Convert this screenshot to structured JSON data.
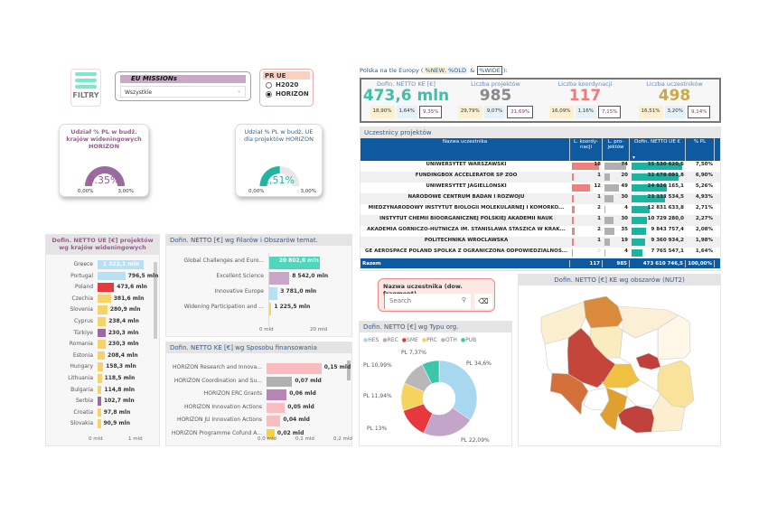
{
  "filters": {
    "filtry_label": "FILTRY",
    "missions_title": "EU MISSIONs",
    "missions_value": "Wszystkie",
    "prue_title": "PR UE",
    "prue_options": [
      {
        "label": "H2020",
        "selected": false
      },
      {
        "label": "HORIZON",
        "selected": true
      }
    ]
  },
  "gauges": [
    {
      "title": "Udział % PL w budż. krajów wideningowych HORIZON",
      "value": "9.35%",
      "value_num": 9.35,
      "min": "0,00%",
      "max": "3,00%",
      "max_num": 3,
      "color": "#9b6a9e",
      "text_color": "#9b5a92"
    },
    {
      "title": "Udział % PL w budż. UE dla projektów HORIZON",
      "value": "1,51%",
      "value_num": 1.51,
      "min": "0,00%",
      "max": "3,00%",
      "max_num": 3,
      "color": "#1fb5a0",
      "text_color": "#2a6a9a"
    }
  ],
  "kpi": {
    "title_pre": "Polska na tle Europy (",
    "tag_new": "%NEW,",
    "tag_old": "%OLD",
    "amp": "&",
    "tag_wide": "%WIDE",
    "title_post": "):",
    "cards": [
      {
        "label": "Dofin. NETTO KE [€]",
        "value": "473,6 mln",
        "color": "#3dbfa8",
        "chips": [
          "18,90%",
          "1,64%",
          "9,35%"
        ]
      },
      {
        "label": "Liczba projektów",
        "value": "985",
        "color": "#8a8a8a",
        "chips": [
          "29,79%",
          "9,07%",
          "21,69%"
        ]
      },
      {
        "label": "Liczba koordynacji",
        "value": "117",
        "color": "#f07b7b",
        "chips": [
          "16,09%",
          "1,16%",
          "7,15%"
        ]
      },
      {
        "label": "Liczba uczestników",
        "value": "498",
        "color": "#c9a94a",
        "chips": [
          "16,51%",
          "3,20%",
          "9,14%"
        ]
      }
    ]
  },
  "table": {
    "title": "Uczestnicy projektów",
    "headers": [
      "Nazwa uczestnika",
      "L. koordy-nacji",
      "L. pro-jektów",
      "Dofin. NETTO UE €",
      "% PL"
    ],
    "sort_icon": "sort-desc-icon",
    "rows": [
      [
        "UNIWERSYTET WARSZAWSKI",
        18,
        74,
        "35 530 620,5",
        "7,50%",
        35530620
      ],
      [
        "FUNDINGBOX ACCELERATOR SP ZOO",
        1,
        20,
        "32 678 091,8",
        "6,90%",
        32678091
      ],
      [
        "UNIWERSYTET JAGIELLONSKI",
        12,
        49,
        "24 926 165,1",
        "5,26%",
        24926165
      ],
      [
        "NARODOWE CENTRUM BADAN I ROZWOJU",
        1,
        30,
        "23 333 534,5",
        "4,93%",
        23333534
      ],
      [
        "MIEDZYNARODOWY INSTYTUT BIOLOGII MOLEKULARNEJ I KOMORKO...",
        2,
        4,
        "12 831 633,8",
        "2,71%",
        12831633
      ],
      [
        "INSTYTUT CHEMII BIOORGANICZNEJ POLSKIEJ AKADEMII NAUK",
        1,
        30,
        "10 729 280,0",
        "2,27%",
        10729280
      ],
      [
        "AKADEMIA GORNICZO-HUTNICZA IM. STANISLAWA STASZICA W KRAK...",
        2,
        35,
        "9 843 757,4",
        "2,08%",
        9843757
      ],
      [
        "POLITECHNIKA WROCLAWSKA",
        1,
        19,
        "9 360 934,2",
        "1,98%",
        9360934
      ],
      [
        "GE AEROSPACE POLAND SPOLKA Z OGRANICZONA ODPOWIEDZIALNOS...",
        0,
        4,
        "7 765 547,1",
        "1,64%",
        7765547
      ]
    ],
    "total": [
      "Razem",
      "117",
      "985",
      "473 610 746,5",
      "100,00%"
    ]
  },
  "search": {
    "title": "Nazwa uczestnika (dow. fragment)",
    "placeholder": "Search"
  },
  "widening": {
    "title": "Dofin. NETTO UE [€] projektów wg krajów wideningowych",
    "axis": [
      "0 mld",
      "1 mld"
    ],
    "items": [
      [
        "Greece",
        "1 322,1 mln",
        1322.1,
        "#b8e0f5"
      ],
      [
        "Portugal",
        "796,5 mln",
        796.5,
        "#b8e0f5"
      ],
      [
        "Poland",
        "473,6 mln",
        473.6,
        "#e83a3a"
      ],
      [
        "Czechia",
        "381,6 mln",
        381.6,
        "#f6d36a"
      ],
      [
        "Slovenia",
        "280,9 mln",
        280.9,
        "#f6d36a"
      ],
      [
        "Cyprus",
        "238,4 mln",
        238.4,
        "#f6d36a"
      ],
      [
        "Türkiye",
        "230,3 mln",
        230.3,
        "#9b6a9e"
      ],
      [
        "Romania",
        "230,3 mln",
        230.3,
        "#f6d36a"
      ],
      [
        "Estonia",
        "208,4 mln",
        208.4,
        "#f6d36a"
      ],
      [
        "Hungary",
        "158,3 mln",
        158.3,
        "#f6d36a"
      ],
      [
        "Lithuania",
        "118,5 mln",
        118.5,
        "#f6d36a"
      ],
      [
        "Bulgaria",
        "114,8 mln",
        114.8,
        "#f6d36a"
      ],
      [
        "Serbia",
        "102,7 mln",
        102.7,
        "#9b6a9e"
      ],
      [
        "Croatia",
        "97,8 mln",
        97.8,
        "#f6d36a"
      ],
      [
        "Slovakia",
        "90,9 mln",
        90.9,
        "#f6d36a"
      ]
    ]
  },
  "pillars": {
    "title": "Dofin. NETTO [€] wg Filarów i Obszarów temat.",
    "axis": [
      "0 mld",
      "20 mld"
    ],
    "items": [
      [
        "Global Challenges and Euro...",
        "20 802,0 mln",
        20802,
        "#4fd6bd"
      ],
      [
        "Excellent Science",
        "8 542,0 mln",
        8542,
        "#c9a7c9"
      ],
      [
        "Innovative Europe",
        "3 781,0 mln",
        3781,
        "#b8e0f5"
      ],
      [
        "Widening Participation and ...",
        "1 225,5 mln",
        1225.5,
        "#f6d36a"
      ]
    ]
  },
  "funding": {
    "title": "Dofin. NETTO KE [€] wg Sposobu finansowania",
    "axis": [
      "0,0 mld",
      "0,1 mld",
      "0,2 mld"
    ],
    "items": [
      [
        "HORIZON Research and Innova...",
        "0,15 mld",
        0.15,
        "#fbbcc0"
      ],
      [
        "HORIZON Coordination and Su...",
        "0,07 mld",
        0.07,
        "#b0b0b0"
      ],
      [
        "HORIZON ERC Grants",
        "0,06 mld",
        0.055,
        "#b784b5"
      ],
      [
        "HORIZON Innovation Actions",
        "0,05 mld",
        0.05,
        "#fbbcc0"
      ],
      [
        "HORIZON JU Innovation Actions",
        "0,04 mld",
        0.038,
        "#fbbcc0"
      ],
      [
        "HORIZON Programme Cofund A...",
        "0,02 mld",
        0.022,
        "#f6d33a"
      ]
    ]
  },
  "chart_data": {
    "type": "pie",
    "title": "Dofin. NETTO [€] wg Typu org.",
    "legend": [
      "HES",
      "REC",
      "SME",
      "PRC",
      "OTH",
      "PUB"
    ],
    "legend_placement": "top-left",
    "values": [
      34.6,
      22.09,
      13,
      11.94,
      10.99,
      7.37
    ],
    "labels": [
      "PL 34,6%",
      "PL 22,09%",
      "PL 13%",
      "PL 11,94%",
      "PL 10,99%",
      "PL 7,37%"
    ],
    "colors": [
      "#a8d8f0",
      "#c3a5c9",
      "#e8383d",
      "#f6d35c",
      "#b8b8b8",
      "#3cc7a9"
    ]
  },
  "map": {
    "title": "Dofin. NETTO [€] KE wg obszarów (NUT2)"
  }
}
